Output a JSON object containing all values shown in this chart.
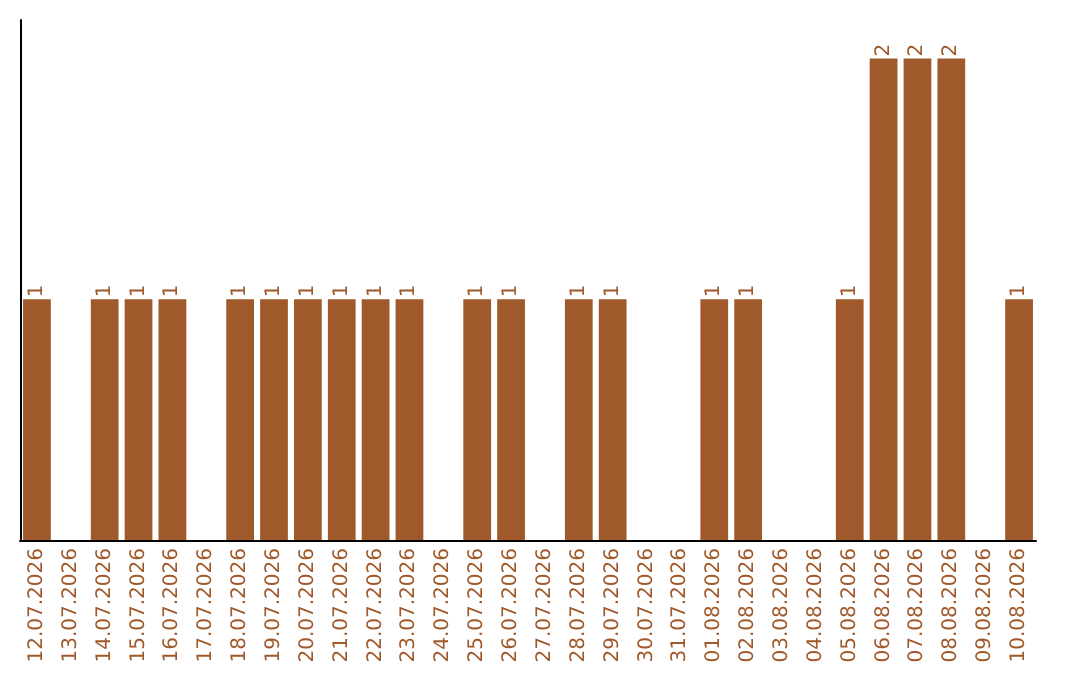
{
  "chart_data": {
    "type": "bar",
    "categories": [
      "12.07.2026",
      "13.07.2026",
      "14.07.2026",
      "15.07.2026",
      "16.07.2026",
      "17.07.2026",
      "18.07.2026",
      "19.07.2026",
      "20.07.2026",
      "21.07.2026",
      "22.07.2026",
      "23.07.2026",
      "24.07.2026",
      "25.07.2026",
      "26.07.2026",
      "27.07.2026",
      "28.07.2026",
      "29.07.2026",
      "30.07.2026",
      "31.07.2026",
      "01.08.2026",
      "02.08.2026",
      "03.08.2026",
      "04.08.2026",
      "05.08.2026",
      "06.08.2026",
      "07.08.2026",
      "08.08.2026",
      "09.08.2026",
      "10.08.2026"
    ],
    "values": [
      1,
      0,
      1,
      1,
      1,
      0,
      1,
      1,
      1,
      1,
      1,
      1,
      0,
      1,
      1,
      0,
      1,
      1,
      0,
      0,
      1,
      1,
      0,
      0,
      1,
      2,
      2,
      2,
      0,
      1
    ],
    "value_labels": [
      "1",
      null,
      "1",
      "1",
      "1",
      null,
      "1",
      "1",
      "1",
      "1",
      "1",
      "1",
      null,
      "1",
      "1",
      null,
      "1",
      "1",
      null,
      null,
      "1",
      "1",
      null,
      null,
      "1",
      "2",
      "2",
      "2",
      null,
      "1"
    ],
    "color": "#a0592a"
  }
}
